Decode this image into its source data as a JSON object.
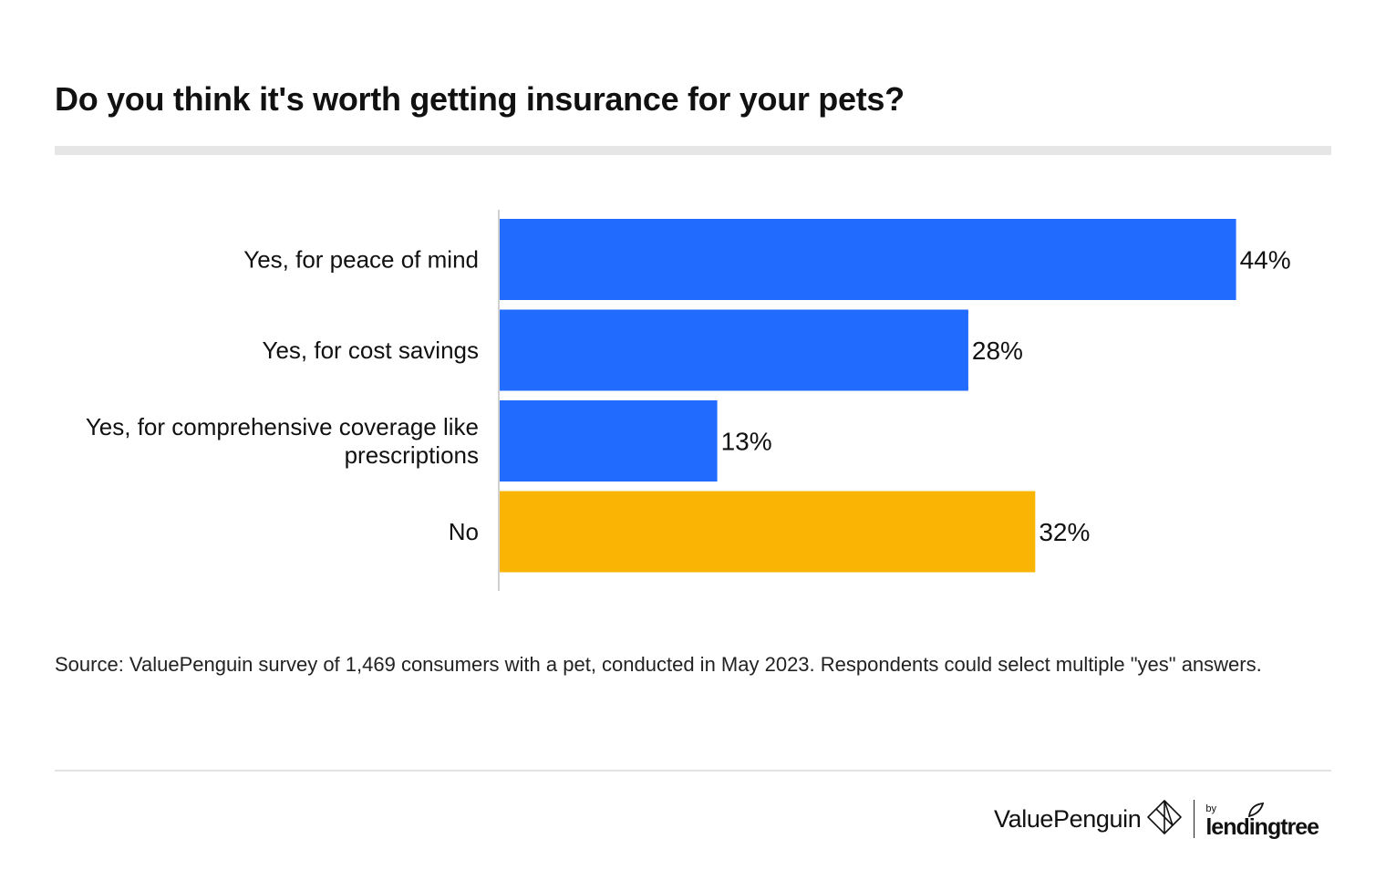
{
  "title": "Do you think it's worth getting insurance for your pets?",
  "chart_data": {
    "type": "bar",
    "orientation": "horizontal",
    "title": "Do you think it's worth getting insurance for your pets?",
    "categories": [
      [
        "Yes, for peace of mind"
      ],
      [
        "Yes, for cost savings"
      ],
      [
        "Yes, for comprehensive coverage like",
        "prescriptions"
      ],
      [
        "No"
      ]
    ],
    "values": [
      44,
      28,
      13,
      32
    ],
    "value_labels": [
      "44%",
      "28%",
      "13%",
      "32%"
    ],
    "colors": [
      "#216cff",
      "#216cff",
      "#216cff",
      "#f9b404"
    ],
    "xlim": [
      0,
      48
    ],
    "xlabel": "",
    "ylabel": "",
    "grid": false,
    "unit": "%"
  },
  "source": "Source: ValuePenguin survey of 1,469 consumers with a pet, conducted in May 2023. Respondents could select multiple \"yes\" answers.",
  "footer": {
    "brand_name": "ValuePenguin",
    "partner_by": "by",
    "partner_name": "lendingtree"
  },
  "colors": {
    "yes": "#216cff",
    "no": "#f9b404",
    "axis": "#d0d0d0",
    "rule": "#e6e6e6"
  }
}
